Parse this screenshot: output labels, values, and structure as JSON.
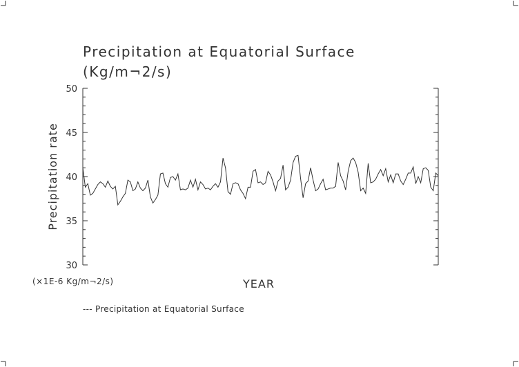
{
  "chart_data": {
    "type": "line",
    "title": "Precipitation at Equatorial Surface",
    "subtitle": "(Kg/m¬2/s)",
    "xlabel": "YEAR",
    "ylabel": "Precipitation rate",
    "y_unit_label": "(×1E-6 Kg/m¬2/s)",
    "ylim": [
      30,
      50
    ],
    "yticks": [
      "30",
      "35",
      "40",
      "45",
      "50"
    ],
    "legend_position": "bottom-left",
    "grid": false,
    "line_color": "#333333",
    "series": [
      {
        "name": "Precipitation at Equatorial Surface",
        "legend_label": "--- Precipitation at Equatorial Surface",
        "values": [
          41.0,
          38.8,
          39.2,
          37.9,
          38.1,
          38.6,
          39.1,
          39.4,
          39.2,
          38.8,
          39.5,
          38.9,
          38.6,
          38.9,
          36.8,
          37.2,
          37.7,
          38.1,
          39.6,
          39.4,
          38.4,
          38.6,
          39.4,
          38.7,
          38.4,
          38.7,
          39.6,
          37.7,
          37.0,
          37.4,
          37.9,
          40.3,
          40.4,
          39.2,
          38.8,
          39.9,
          40.0,
          39.6,
          40.3,
          38.5,
          38.6,
          38.5,
          38.7,
          39.6,
          38.8,
          39.7,
          38.5,
          39.4,
          39.1,
          38.6,
          38.7,
          38.5,
          38.9,
          39.2,
          38.8,
          39.4,
          42.1,
          41.0,
          38.3,
          38.0,
          39.2,
          39.3,
          39.2,
          38.5,
          38.1,
          37.5,
          38.8,
          38.8,
          40.6,
          40.8,
          39.3,
          39.4,
          39.1,
          39.3,
          40.6,
          40.2,
          39.4,
          38.4,
          39.5,
          39.8,
          41.3,
          38.5,
          38.8,
          39.6,
          41.6,
          42.3,
          42.4,
          39.8,
          37.6,
          39.2,
          39.5,
          41.0,
          39.6,
          38.4,
          38.6,
          39.2,
          39.7,
          38.5,
          38.6,
          38.7,
          38.7,
          38.9,
          41.6,
          40.1,
          39.5,
          38.5,
          40.6,
          41.8,
          42.1,
          41.6,
          40.5,
          38.4,
          38.7,
          38.1,
          41.5,
          39.3,
          39.4,
          39.7,
          40.3,
          40.8,
          40.1,
          40.9,
          39.4,
          40.2,
          39.3,
          40.3,
          40.3,
          39.5,
          39.1,
          39.7,
          40.4,
          40.4,
          41.1,
          39.2,
          40.0,
          39.3,
          40.9,
          41.0,
          40.7,
          38.8,
          38.4,
          40.4,
          40.1
        ]
      }
    ]
  }
}
